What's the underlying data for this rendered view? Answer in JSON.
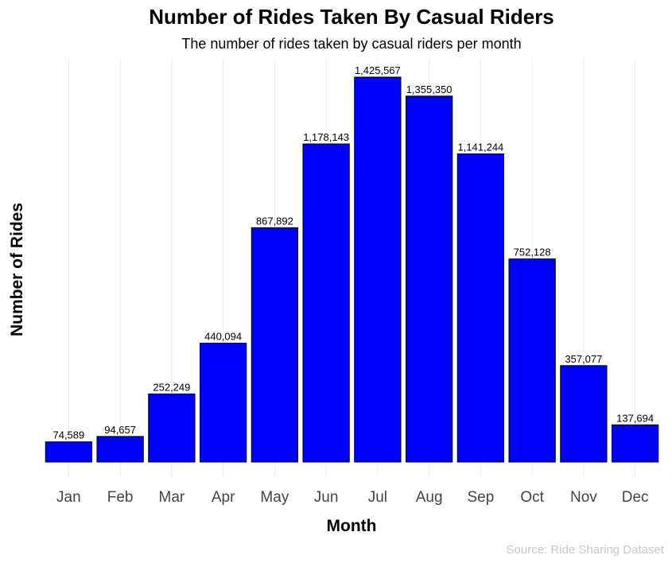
{
  "chart_data": {
    "type": "bar",
    "title": "Number of Rides Taken By Casual Riders",
    "subtitle": "The number of rides taken by casual riders per month",
    "xlabel": "Month",
    "ylabel": "Number of Rides",
    "caption": "Source: Ride Sharing Dataset",
    "categories": [
      "Jan",
      "Feb",
      "Mar",
      "Apr",
      "May",
      "Jun",
      "Jul",
      "Aug",
      "Sep",
      "Oct",
      "Nov",
      "Dec"
    ],
    "values": [
      74589,
      94657,
      252249,
      440094,
      867892,
      1178143,
      1425567,
      1355350,
      1141244,
      752128,
      357077,
      137694
    ],
    "value_labels": [
      "74,589",
      "94,657",
      "252,249",
      "440,094",
      "867,892",
      "1,178,143",
      "1,425,567",
      "1,355,350",
      "1,141,244",
      "752,128",
      "357,077",
      "137,694"
    ],
    "ylim": [
      0,
      1500000
    ],
    "grid": "vertical",
    "y_tick_labels": false,
    "colors": {
      "bar_fill": "#0000FF",
      "bar_stroke": "#000000",
      "grid": "#EBEBEB",
      "caption": "#C8C8C8"
    }
  }
}
